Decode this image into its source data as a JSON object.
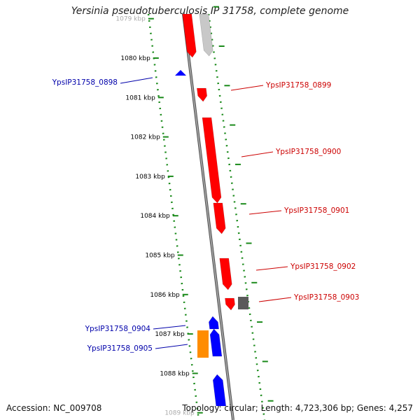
{
  "title": "Yersinia pseudotuberculosis IP 31758, complete genome",
  "footer": {
    "accession": "Accession: NC_009708",
    "summary": "Topology: circular; Length: 4,723,306 bp; Genes: 4,257"
  },
  "ticks": [
    {
      "label": "1079 kbp",
      "faded": true
    },
    {
      "label": "1080 kbp"
    },
    {
      "label": "1081 kbp"
    },
    {
      "label": "1082 kbp"
    },
    {
      "label": "1083 kbp"
    },
    {
      "label": "1084 kbp"
    },
    {
      "label": "1085 kbp"
    },
    {
      "label": "1086 kbp"
    },
    {
      "label": "1087 kbp"
    },
    {
      "label": "1088 kbp"
    },
    {
      "label": "1089 kbp",
      "faded": true
    }
  ],
  "colors": {
    "forward": "#ff0000",
    "reverse": "#0000ff",
    "grey": "#5a5a5a",
    "lightgrey": "#c8c8c8",
    "orange": "#ff8c00",
    "ruler": "#1a8a1a",
    "backbone": "#8a8a8a",
    "forward_label": "#cc0000",
    "reverse_label": "#0000aa"
  },
  "labels": [
    {
      "id": "YpsIP31758_0898",
      "text": "YpsIP31758_0898",
      "color": "reverse"
    },
    {
      "id": "YpsIP31758_0899",
      "text": "YpsIP31758_0899",
      "color": "forward"
    },
    {
      "id": "YpsIP31758_0900",
      "text": "YpsIP31758_0900",
      "color": "forward"
    },
    {
      "id": "YpsIP31758_0901",
      "text": "YpsIP31758_0901",
      "color": "forward"
    },
    {
      "id": "YpsIP31758_0902",
      "text": "YpsIP31758_0902",
      "color": "forward"
    },
    {
      "id": "YpsIP31758_0903",
      "text": "YpsIP31758_0903",
      "color": "forward"
    },
    {
      "id": "YpsIP31758_0904",
      "text": "YpsIP31758_0904",
      "color": "reverse"
    },
    {
      "id": "YpsIP31758_0905",
      "text": "YpsIP31758_0905",
      "color": "reverse"
    }
  ]
}
